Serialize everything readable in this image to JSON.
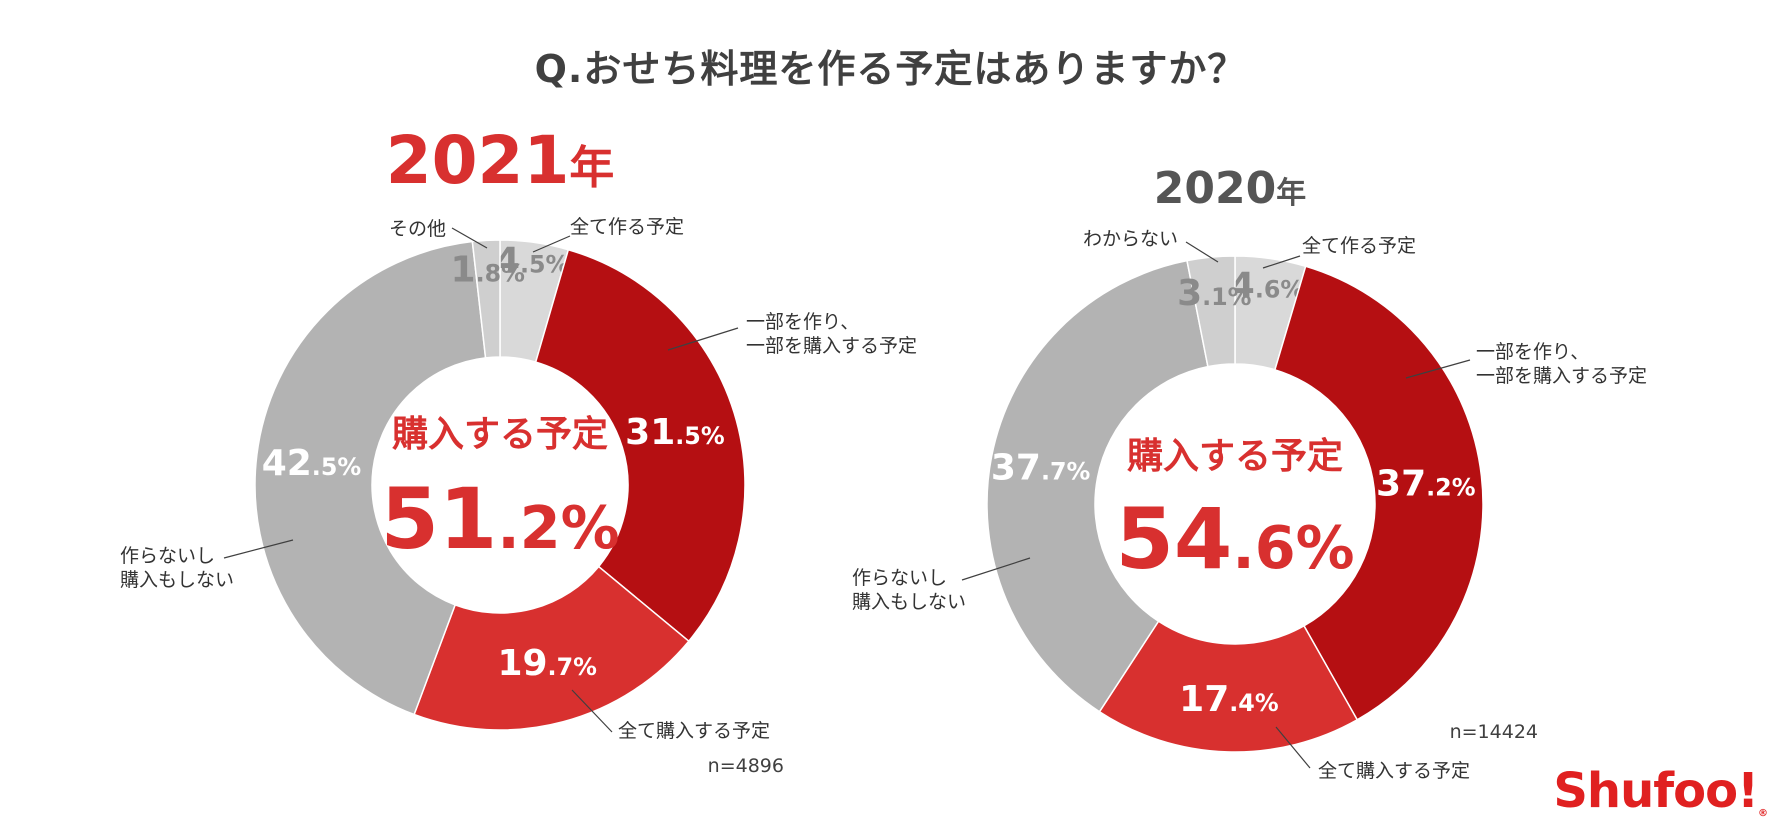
{
  "title": "Q.おせち料理を作る予定はありますか？",
  "logo": "Shufoo!",
  "chart_data": [
    {
      "type": "pie",
      "donut": true,
      "year": "2021年",
      "center_label": "購入する予定",
      "center_value": "51.2%",
      "n": "n=4896",
      "slices": [
        {
          "label": "全て作る予定",
          "value": 4.5,
          "value_text": "4.5%",
          "color": "#d9d9d9"
        },
        {
          "label": "一部を作り、\n一部を購入する予定",
          "value": 31.5,
          "value_text": "31.5%",
          "color": "#b50f12"
        },
        {
          "label": "全て購入する予定",
          "value": 19.7,
          "value_text": "19.7%",
          "color": "#d8302f"
        },
        {
          "label": "作らないし\n購入もしない",
          "value": 42.5,
          "value_text": "42.5%",
          "color": "#b3b3b3"
        },
        {
          "label": "その他",
          "value": 1.8,
          "value_text": "1.8%",
          "color": "#cfcfcf"
        }
      ]
    },
    {
      "type": "pie",
      "donut": true,
      "year": "2020年",
      "center_label": "購入する予定",
      "center_value": "54.6%",
      "n": "n=14424",
      "slices": [
        {
          "label": "全て作る予定",
          "value": 4.6,
          "value_text": "4.6%",
          "color": "#d9d9d9"
        },
        {
          "label": "一部を作り、\n一部を購入する予定",
          "value": 37.2,
          "value_text": "37.2%",
          "color": "#b50f12"
        },
        {
          "label": "全て購入する予定",
          "value": 17.4,
          "value_text": "17.4%",
          "color": "#d8302f"
        },
        {
          "label": "作らないし\n購入もしない",
          "value": 37.7,
          "value_text": "37.7%",
          "color": "#b3b3b3"
        },
        {
          "label": "わからない",
          "value": 3.1,
          "value_text": "3.1%",
          "color": "#cfcfcf"
        }
      ]
    }
  ]
}
